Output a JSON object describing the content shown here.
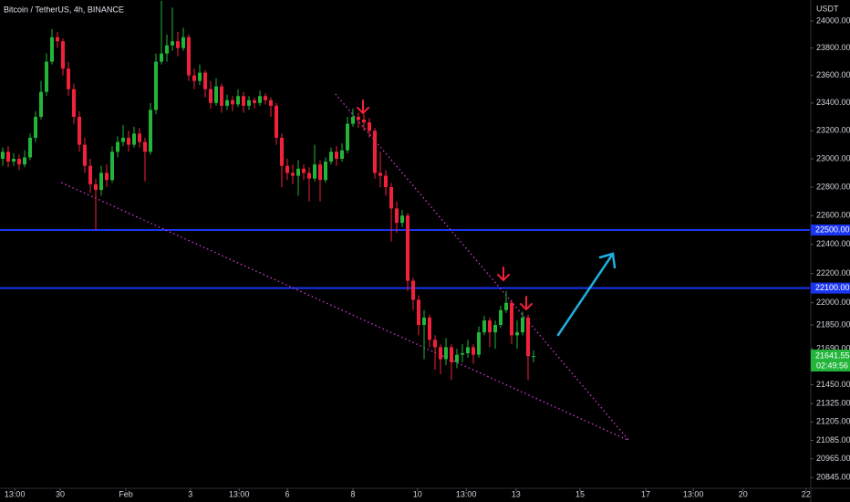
{
  "chart_data": {
    "type": "candlestick",
    "title": "Bitcoin / TetherUS, 4h, BINANCE",
    "currency": "USDT",
    "log_scale": true,
    "grid": false,
    "up_color": "#22b53a",
    "down_color": "#f2213a",
    "ylim": [
      20775,
      24156
    ],
    "yticks": [
      {
        "value": 24000,
        "label": "24000.00"
      },
      {
        "value": 23800,
        "label": "23800.00"
      },
      {
        "value": 23600,
        "label": "23600.00"
      },
      {
        "value": 23400,
        "label": "23400.00"
      },
      {
        "value": 23200,
        "label": "23200.00"
      },
      {
        "value": 23000,
        "label": "23000.00"
      },
      {
        "value": 22800,
        "label": "22800.00"
      },
      {
        "value": 22600,
        "label": "22600.00"
      },
      {
        "value": 22400,
        "label": "22400.00"
      },
      {
        "value": 22200,
        "label": "22200.00"
      },
      {
        "value": 22000,
        "label": "22000.00"
      },
      {
        "value": 21850,
        "label": "21850.00"
      },
      {
        "value": 21690,
        "label": "21690.00"
      },
      {
        "value": 21450,
        "label": "21450.00"
      },
      {
        "value": 21325,
        "label": "21325.00"
      },
      {
        "value": 21205,
        "label": "21205.00"
      },
      {
        "value": 21085,
        "label": "21085.00"
      },
      {
        "value": 20965,
        "label": "20965.00"
      },
      {
        "value": 20845,
        "label": "20845.00"
      }
    ],
    "xlim": [
      -0.5,
      147.5
    ],
    "xticks": [
      {
        "value": 2.2,
        "label": "13:00"
      },
      {
        "value": 10.5,
        "label": "30"
      },
      {
        "value": 22.5,
        "label": "Feb"
      },
      {
        "value": 34.3,
        "label": "3"
      },
      {
        "value": 43.2,
        "label": "13:00"
      },
      {
        "value": 52,
        "label": "6"
      },
      {
        "value": 64,
        "label": "8"
      },
      {
        "value": 75.8,
        "label": "10"
      },
      {
        "value": 84.7,
        "label": "13:00"
      },
      {
        "value": 93.8,
        "label": "13"
      },
      {
        "value": 105.5,
        "label": "15"
      },
      {
        "value": 117.5,
        "label": "17"
      },
      {
        "value": 126.2,
        "label": "13:00"
      },
      {
        "value": 135.3,
        "label": "20"
      },
      {
        "value": 146.8,
        "label": "22"
      }
    ],
    "ohlc": [
      [
        23000,
        23080,
        22950,
        23050
      ],
      [
        23050,
        23090,
        22940,
        22980
      ],
      [
        22980,
        23040,
        22950,
        23000
      ],
      [
        23000,
        23030,
        22920,
        22960
      ],
      [
        22960,
        23060,
        22940,
        23010
      ],
      [
        23010,
        23180,
        22990,
        23150
      ],
      [
        23150,
        23340,
        23120,
        23300
      ],
      [
        23300,
        23560,
        23280,
        23480
      ],
      [
        23480,
        23760,
        23450,
        23700
      ],
      [
        23700,
        23940,
        23680,
        23880
      ],
      [
        23880,
        23920,
        23800,
        23850
      ],
      [
        23850,
        23870,
        23600,
        23650
      ],
      [
        23650,
        23700,
        23450,
        23500
      ],
      [
        23500,
        23540,
        23250,
        23300
      ],
      [
        23300,
        23340,
        23050,
        23100
      ],
      [
        23100,
        23150,
        22900,
        22950
      ],
      [
        22950,
        23000,
        22760,
        22820
      ],
      [
        22820,
        22860,
        22500,
        22780
      ],
      [
        22780,
        22950,
        22740,
        22900
      ],
      [
        22900,
        22960,
        22800,
        22850
      ],
      [
        22850,
        23090,
        22830,
        23050
      ],
      [
        23050,
        23160,
        23010,
        23120
      ],
      [
        23120,
        23240,
        23090,
        23150
      ],
      [
        23150,
        23200,
        23050,
        23100
      ],
      [
        23100,
        23230,
        23080,
        23180
      ],
      [
        23180,
        23220,
        23080,
        23120
      ],
      [
        23120,
        23150,
        22840,
        23050
      ],
      [
        23050,
        23400,
        23030,
        23350
      ],
      [
        23350,
        23760,
        23320,
        23700
      ],
      [
        23700,
        24150,
        23680,
        23760
      ],
      [
        23760,
        23900,
        23700,
        23820
      ],
      [
        23820,
        24100,
        23780,
        23850
      ],
      [
        23850,
        23920,
        23740,
        23800
      ],
      [
        23800,
        23950,
        23780,
        23880
      ],
      [
        23880,
        23900,
        23560,
        23600
      ],
      [
        23600,
        23650,
        23500,
        23560
      ],
      [
        23560,
        23680,
        23530,
        23620
      ],
      [
        23620,
        23640,
        23440,
        23500
      ],
      [
        23500,
        23560,
        23360,
        23400
      ],
      [
        23400,
        23580,
        23380,
        23520
      ],
      [
        23520,
        23540,
        23330,
        23380
      ],
      [
        23380,
        23460,
        23350,
        23420
      ],
      [
        23420,
        23450,
        23340,
        23390
      ],
      [
        23390,
        23500,
        23370,
        23450
      ],
      [
        23450,
        23480,
        23330,
        23380
      ],
      [
        23380,
        23450,
        23350,
        23420
      ],
      [
        23420,
        23440,
        23360,
        23400
      ],
      [
        23400,
        23490,
        23380,
        23450
      ],
      [
        23450,
        23470,
        23390,
        23420
      ],
      [
        23420,
        23440,
        23300,
        23380
      ],
      [
        23380,
        23400,
        23100,
        23150
      ],
      [
        23150,
        23180,
        22800,
        22950
      ],
      [
        22950,
        23000,
        22850,
        22900
      ],
      [
        22900,
        22960,
        22820,
        22880
      ],
      [
        22880,
        22990,
        22740,
        22930
      ],
      [
        22930,
        22960,
        22850,
        22900
      ],
      [
        22900,
        22940,
        22700,
        22860
      ],
      [
        22860,
        23100,
        22840,
        22960
      ],
      [
        22960,
        22990,
        22700,
        22850
      ],
      [
        22850,
        23010,
        22830,
        22980
      ],
      [
        22980,
        23080,
        22960,
        23050
      ],
      [
        23050,
        23090,
        22950,
        23000
      ],
      [
        23000,
        23110,
        22980,
        23060
      ],
      [
        23060,
        23300,
        23040,
        23250
      ],
      [
        23250,
        23360,
        23230,
        23300
      ],
      [
        23300,
        23330,
        23220,
        23280
      ],
      [
        23280,
        23320,
        23200,
        23260
      ],
      [
        23260,
        23290,
        23150,
        23200
      ],
      [
        23200,
        23220,
        22860,
        22900
      ],
      [
        22900,
        23050,
        22800,
        22880
      ],
      [
        22880,
        22920,
        22740,
        22800
      ],
      [
        22800,
        22830,
        22420,
        22650
      ],
      [
        22650,
        22700,
        22480,
        22550
      ],
      [
        22550,
        22640,
        22520,
        22600
      ],
      [
        22600,
        22620,
        22080,
        22150
      ],
      [
        22150,
        22170,
        21950,
        22020
      ],
      [
        22020,
        22050,
        21780,
        21850
      ],
      [
        21850,
        21950,
        21620,
        21900
      ],
      [
        21900,
        21920,
        21700,
        21750
      ],
      [
        21750,
        21780,
        21550,
        21700
      ],
      [
        21700,
        21720,
        21520,
        21620
      ],
      [
        21620,
        21760,
        21580,
        21700
      ],
      [
        21700,
        21720,
        21480,
        21600
      ],
      [
        21600,
        21690,
        21560,
        21650
      ],
      [
        21650,
        21720,
        21600,
        21660
      ],
      [
        21660,
        21750,
        21630,
        21700
      ],
      [
        21700,
        21720,
        21590,
        21650
      ],
      [
        21650,
        21840,
        21630,
        21800
      ],
      [
        21800,
        21910,
        21780,
        21880
      ],
      [
        21880,
        21900,
        21700,
        21800
      ],
      [
        21800,
        21880,
        21690,
        21850
      ],
      [
        21850,
        21980,
        21830,
        21950
      ],
      [
        21950,
        22080,
        21930,
        22000
      ],
      [
        22000,
        22020,
        21720,
        21780
      ],
      [
        21780,
        21880,
        21690,
        21800
      ],
      [
        21800,
        21940,
        21780,
        21900
      ],
      [
        21900,
        21920,
        21480,
        21640
      ],
      [
        21640,
        21680,
        21600,
        21641.55
      ]
    ],
    "hlines": [
      {
        "value": 22500,
        "label": "22500.00",
        "color": "#1a35f0"
      },
      {
        "value": 22100,
        "label": "22100.00",
        "color": "#1a35f0"
      }
    ],
    "last_price": {
      "value": 21641.55,
      "label": "21641.55",
      "countdown": "02:49:56",
      "color": "#22b53a"
    },
    "trendline_color": "#d23ad6",
    "trendlines": [
      {
        "from": [
          10.7,
          22832
        ],
        "to": [
          114.5,
          21082
        ]
      },
      {
        "from": [
          60.8,
          23465
        ],
        "to": [
          114.5,
          21082
        ]
      }
    ]
  }
}
